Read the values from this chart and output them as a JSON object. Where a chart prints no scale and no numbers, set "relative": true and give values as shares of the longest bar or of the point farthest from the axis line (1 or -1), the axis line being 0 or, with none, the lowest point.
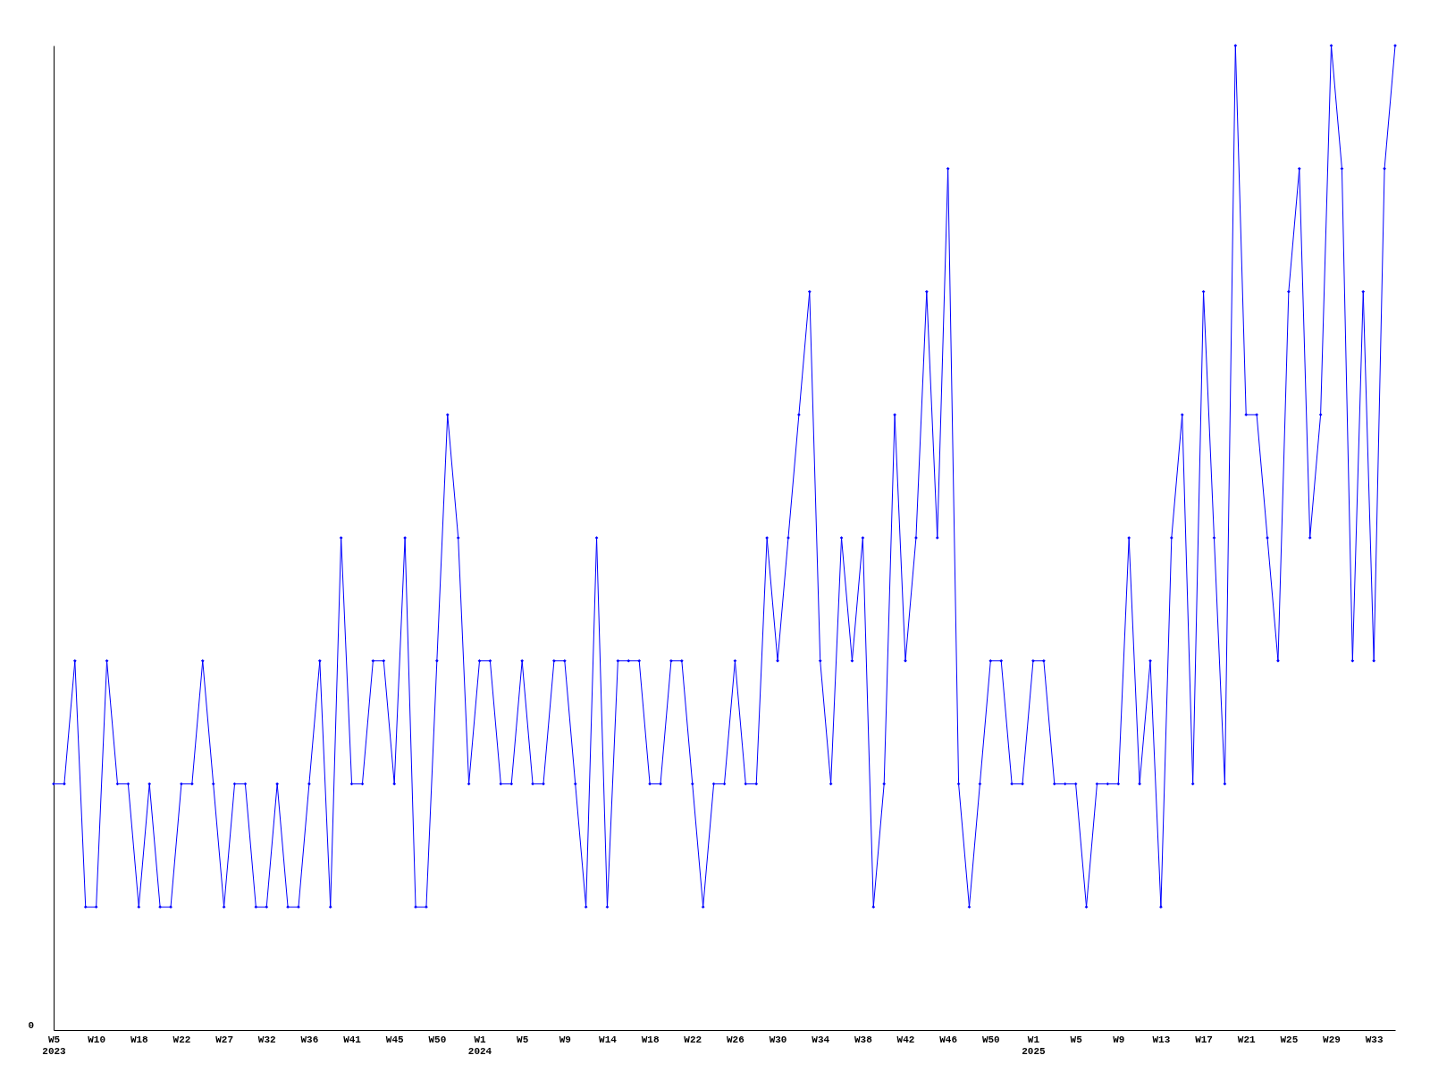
{
  "chart_data": {
    "type": "line",
    "relative": true,
    "marker": "diamond",
    "categories": [
      "W5\n2023",
      null,
      null,
      null,
      "W10",
      null,
      null,
      null,
      "W18",
      null,
      null,
      null,
      "W22",
      null,
      null,
      null,
      "W27",
      null,
      null,
      null,
      "W32",
      null,
      null,
      null,
      "W36",
      null,
      null,
      null,
      "W41",
      null,
      null,
      null,
      "W45",
      null,
      null,
      null,
      "W50",
      null,
      null,
      null,
      "W1\n2024",
      null,
      null,
      null,
      "W5",
      null,
      null,
      null,
      "W9",
      null,
      null,
      null,
      "W14",
      null,
      null,
      null,
      "W18",
      null,
      null,
      null,
      "W22",
      null,
      null,
      null,
      "W26",
      null,
      null,
      null,
      "W30",
      null,
      null,
      null,
      "W34",
      null,
      null,
      null,
      "W38",
      null,
      null,
      null,
      "W42",
      null,
      null,
      null,
      "W46",
      null,
      null,
      null,
      "W50",
      null,
      null,
      null,
      "W1\n2025",
      null,
      null,
      null,
      "W5",
      null,
      null,
      null,
      "W9",
      null,
      null,
      null,
      "W13",
      null,
      null,
      null,
      "W17",
      null,
      null,
      null,
      "W21",
      null,
      null,
      null,
      "W25",
      null,
      null,
      null,
      "W29",
      null,
      null,
      null,
      "W33",
      null,
      null
    ],
    "series": [
      {
        "color": "#0000ff",
        "values": [
          0.25,
          0.25,
          0.375,
          0.125,
          0.125,
          0.375,
          0.25,
          0.25,
          0.125,
          0.25,
          0.125,
          0.125,
          0.25,
          0.25,
          0.375,
          0.25,
          0.125,
          0.25,
          0.25,
          0.125,
          0.125,
          0.25,
          0.125,
          0.125,
          0.25,
          0.375,
          0.125,
          0.5,
          0.25,
          0.25,
          0.375,
          0.375,
          0.25,
          0.5,
          0.125,
          0.125,
          0.375,
          0.625,
          0.5,
          0.25,
          0.375,
          0.375,
          0.25,
          0.25,
          0.375,
          0.25,
          0.25,
          0.375,
          0.375,
          0.25,
          0.125,
          0.5,
          0.125,
          0.375,
          0.375,
          0.375,
          0.25,
          0.25,
          0.375,
          0.375,
          0.25,
          0.125,
          0.25,
          0.25,
          0.375,
          0.25,
          0.25,
          0.5,
          0.375,
          0.5,
          0.625,
          0.75,
          0.375,
          0.25,
          0.5,
          0.375,
          0.5,
          0.125,
          0.25,
          0.625,
          0.375,
          0.5,
          0.75,
          0.5,
          0.875,
          0.25,
          0.125,
          0.25,
          0.375,
          0.375,
          0.25,
          0.25,
          0.375,
          0.375,
          0.25,
          0.25,
          0.25,
          0.125,
          0.25,
          0.25,
          0.25,
          0.5,
          0.25,
          0.375,
          0.125,
          0.5,
          0.625,
          0.25,
          0.75,
          0.5,
          0.25,
          1,
          0.625,
          0.625,
          0.5,
          0.375,
          0.75,
          0.875,
          0.5,
          0.625,
          1,
          0.875,
          0.375,
          0.75,
          0.375,
          0.875,
          1
        ]
      }
    ],
    "annotations": [
      "0"
    ]
  }
}
